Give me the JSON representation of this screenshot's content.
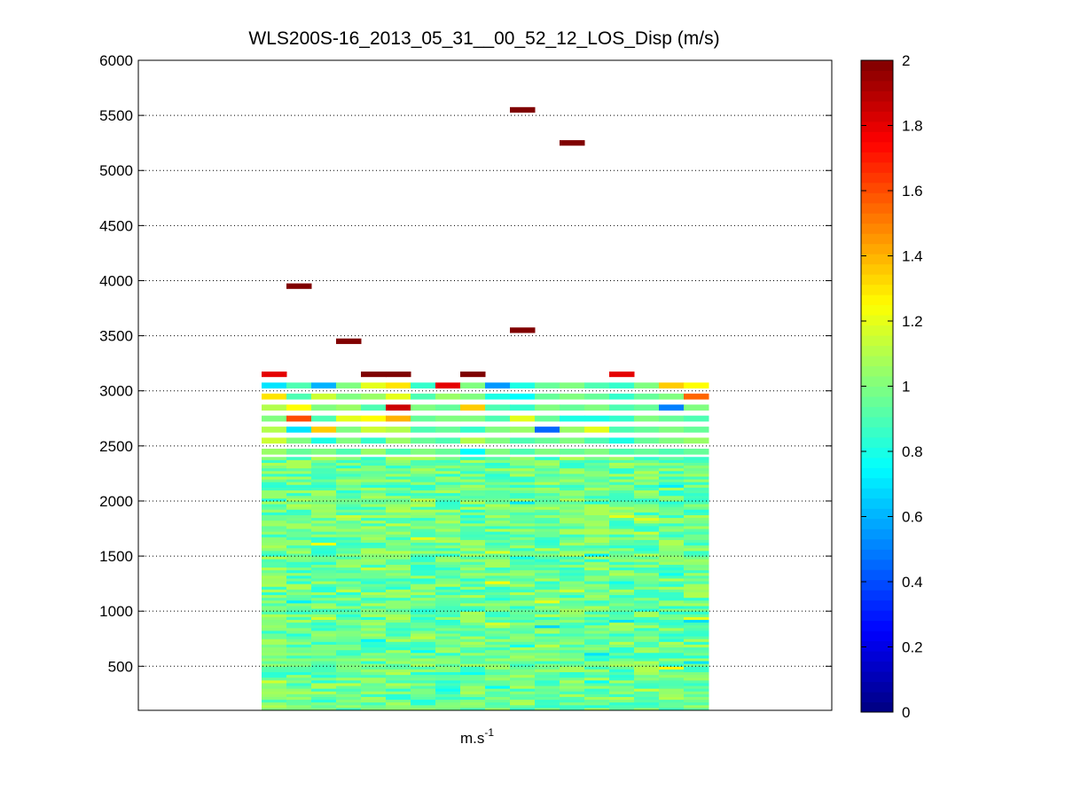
{
  "chart_data": {
    "type": "heatmap",
    "title": "WLS200S-16_2013_05_31__00_52_12_LOS_Disp (m/s)",
    "xlabel_base": "m.s",
    "xlabel_exp": "-1",
    "ylabel": "",
    "ylim": [
      100,
      6000
    ],
    "yticks": [
      500,
      1000,
      1500,
      2000,
      2500,
      3000,
      3500,
      4000,
      4500,
      5000,
      5500,
      6000
    ],
    "grid": true,
    "colormap": "jet",
    "clim": [
      0,
      2
    ],
    "colorbar_ticks": [
      0,
      0.2,
      0.4,
      0.6,
      0.8,
      1,
      1.2,
      1.4,
      1.6,
      1.8,
      2
    ],
    "columns": 18,
    "row_height": 50,
    "dense_top": 2400,
    "mid_rows_top": 3100,
    "outliers": [
      {
        "col": 1,
        "y": 3950,
        "value": 2.0
      },
      {
        "col": 3,
        "y": 3450,
        "value": 2.0
      },
      {
        "col": 10,
        "y": 3550,
        "value": 2.0
      },
      {
        "col": 10,
        "y": 5550,
        "value": 2.0
      },
      {
        "col": 12,
        "y": 5250,
        "value": 2.0
      },
      {
        "col": 0,
        "y": 3150,
        "value": 1.8
      },
      {
        "col": 4,
        "y": 3150,
        "value": 2.0
      },
      {
        "col": 5,
        "y": 3150,
        "value": 2.0
      },
      {
        "col": 8,
        "y": 3150,
        "value": 2.0
      },
      {
        "col": 14,
        "y": 3150,
        "value": 1.8
      }
    ],
    "top_rows": [
      {
        "y": 3050,
        "values": [
          0.7,
          0.9,
          0.6,
          1.0,
          1.2,
          1.3,
          0.85,
          1.8,
          1.0,
          0.55,
          0.8,
          0.95,
          1.0,
          0.9,
          0.85,
          1.0,
          1.35,
          1.25
        ]
      },
      {
        "y": 2950,
        "values": [
          1.3,
          0.9,
          1.15,
          1.0,
          1.05,
          1.2,
          0.9,
          1.05,
          1.0,
          0.8,
          0.75,
          0.95,
          1.0,
          0.95,
          0.85,
          0.95,
          1.0,
          1.55
        ]
      },
      {
        "y": 2850,
        "values": [
          1.1,
          1.25,
          1.0,
          1.05,
          0.9,
          1.85,
          1.0,
          0.95,
          1.35,
          0.9,
          0.85,
          1.0,
          0.95,
          1.0,
          0.9,
          0.95,
          0.5,
          1.0
        ]
      },
      {
        "y": 2750,
        "values": [
          1.0,
          1.6,
          0.9,
          1.2,
          1.25,
          1.4,
          0.95,
          1.0,
          1.0,
          0.9,
          1.2,
          0.95,
          0.8,
          0.8,
          0.85,
          1.0,
          0.95,
          0.9
        ]
      },
      {
        "y": 2650,
        "values": [
          1.1,
          0.7,
          1.35,
          1.0,
          1.15,
          1.1,
          0.9,
          0.95,
          0.85,
          1.0,
          1.05,
          0.45,
          1.05,
          1.2,
          0.9,
          0.95,
          1.0,
          0.95
        ]
      },
      {
        "y": 2550,
        "values": [
          1.15,
          1.0,
          0.8,
          1.0,
          0.85,
          1.05,
          0.95,
          0.9,
          1.1,
          1.0,
          0.9,
          0.95,
          1.0,
          0.9,
          0.8,
          0.95,
          1.0,
          1.05
        ]
      },
      {
        "y": 2450,
        "values": [
          1.05,
          0.95,
          1.0,
          0.9,
          1.05,
          0.9,
          1.0,
          0.95,
          0.75,
          1.0,
          0.9,
          1.0,
          0.95,
          1.0,
          0.9,
          0.95,
          0.9,
          0.95
        ]
      }
    ]
  }
}
